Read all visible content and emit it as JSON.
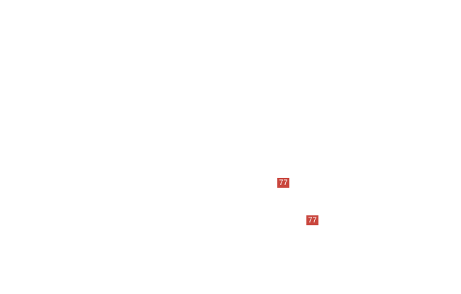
{
  "badges": [
    {
      "label": "77"
    },
    {
      "label": "77"
    }
  ],
  "colors": {
    "badge": "#c9463d",
    "badge_text": "#ffffff"
  }
}
